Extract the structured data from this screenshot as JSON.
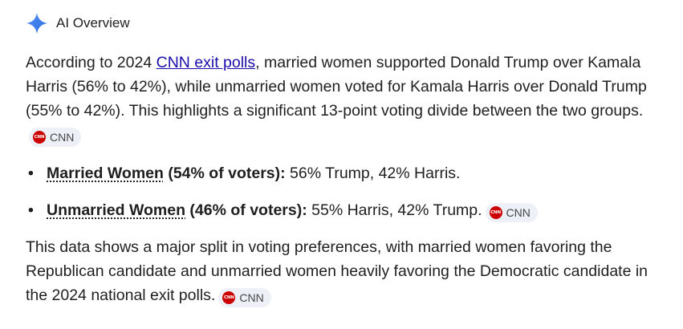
{
  "header": {
    "title": "AI Overview",
    "icon": "sparkle-icon"
  },
  "colors": {
    "link": "#1a0dab",
    "chip_bg": "#edf0f7",
    "cnn_red": "#cc0000",
    "sparkle_blue": "#4285f4"
  },
  "paragraph1": {
    "before_link": "According to 2024 ",
    "link_text": "CNN exit polls",
    "after_link": ", married women supported Donald Trump over Kamala Harris (56% to 42%), while unmarried women voted for Kamala Harris over Donald Trump (55% to 42%). This highlights a significant 13-point voting divide between the two groups.",
    "source_label": "CNN"
  },
  "bullets": [
    {
      "term": "Married Women",
      "detail": " (54% of voters):",
      "value": " 56% Trump, 42% Harris.",
      "source_label": ""
    },
    {
      "term": "Unmarried Women",
      "detail": " (46% of voters):",
      "value": " 55% Harris, 42% Trump.",
      "source_label": "CNN"
    }
  ],
  "paragraph2": {
    "text": "This data shows a major split in voting preferences, with married women favoring the Republican candidate and unmarried women heavily favoring the Democratic candidate in the 2024 national exit polls.",
    "source_label": "CNN"
  },
  "cnn_logo_text": "CNN"
}
